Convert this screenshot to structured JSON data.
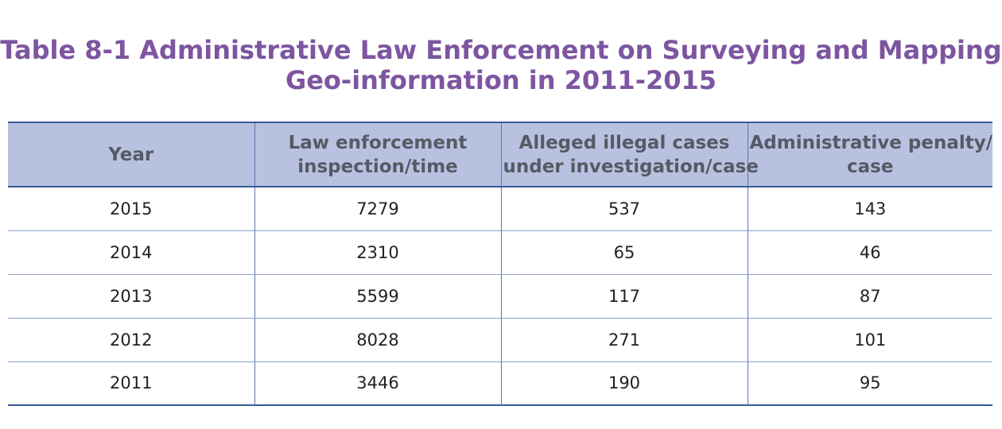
{
  "title": {
    "line1": "Table 8-1 Administrative Law Enforcement on Surveying and Mapping",
    "line2": "Geo-information in 2011-2015"
  },
  "table": {
    "headers": [
      {
        "lines": [
          "Year"
        ]
      },
      {
        "lines": [
          "Law enforcement",
          "inspection/time"
        ]
      },
      {
        "lines": [
          "Alleged illegal cases",
          "under investigation/case"
        ]
      },
      {
        "lines": [
          "Administrative penalty/",
          "case"
        ]
      }
    ],
    "rows": [
      [
        "2015",
        "7279",
        "537",
        "143"
      ],
      [
        "2014",
        "2310",
        "65",
        "46"
      ],
      [
        "2013",
        "5599",
        "117",
        "87"
      ],
      [
        "2012",
        "8028",
        "271",
        "101"
      ],
      [
        "2011",
        "3446",
        "190",
        "95"
      ]
    ]
  },
  "colors": {
    "title": "#7d55a0",
    "header_bg": "#b8c2e0",
    "rule": "#3b5a9a"
  }
}
